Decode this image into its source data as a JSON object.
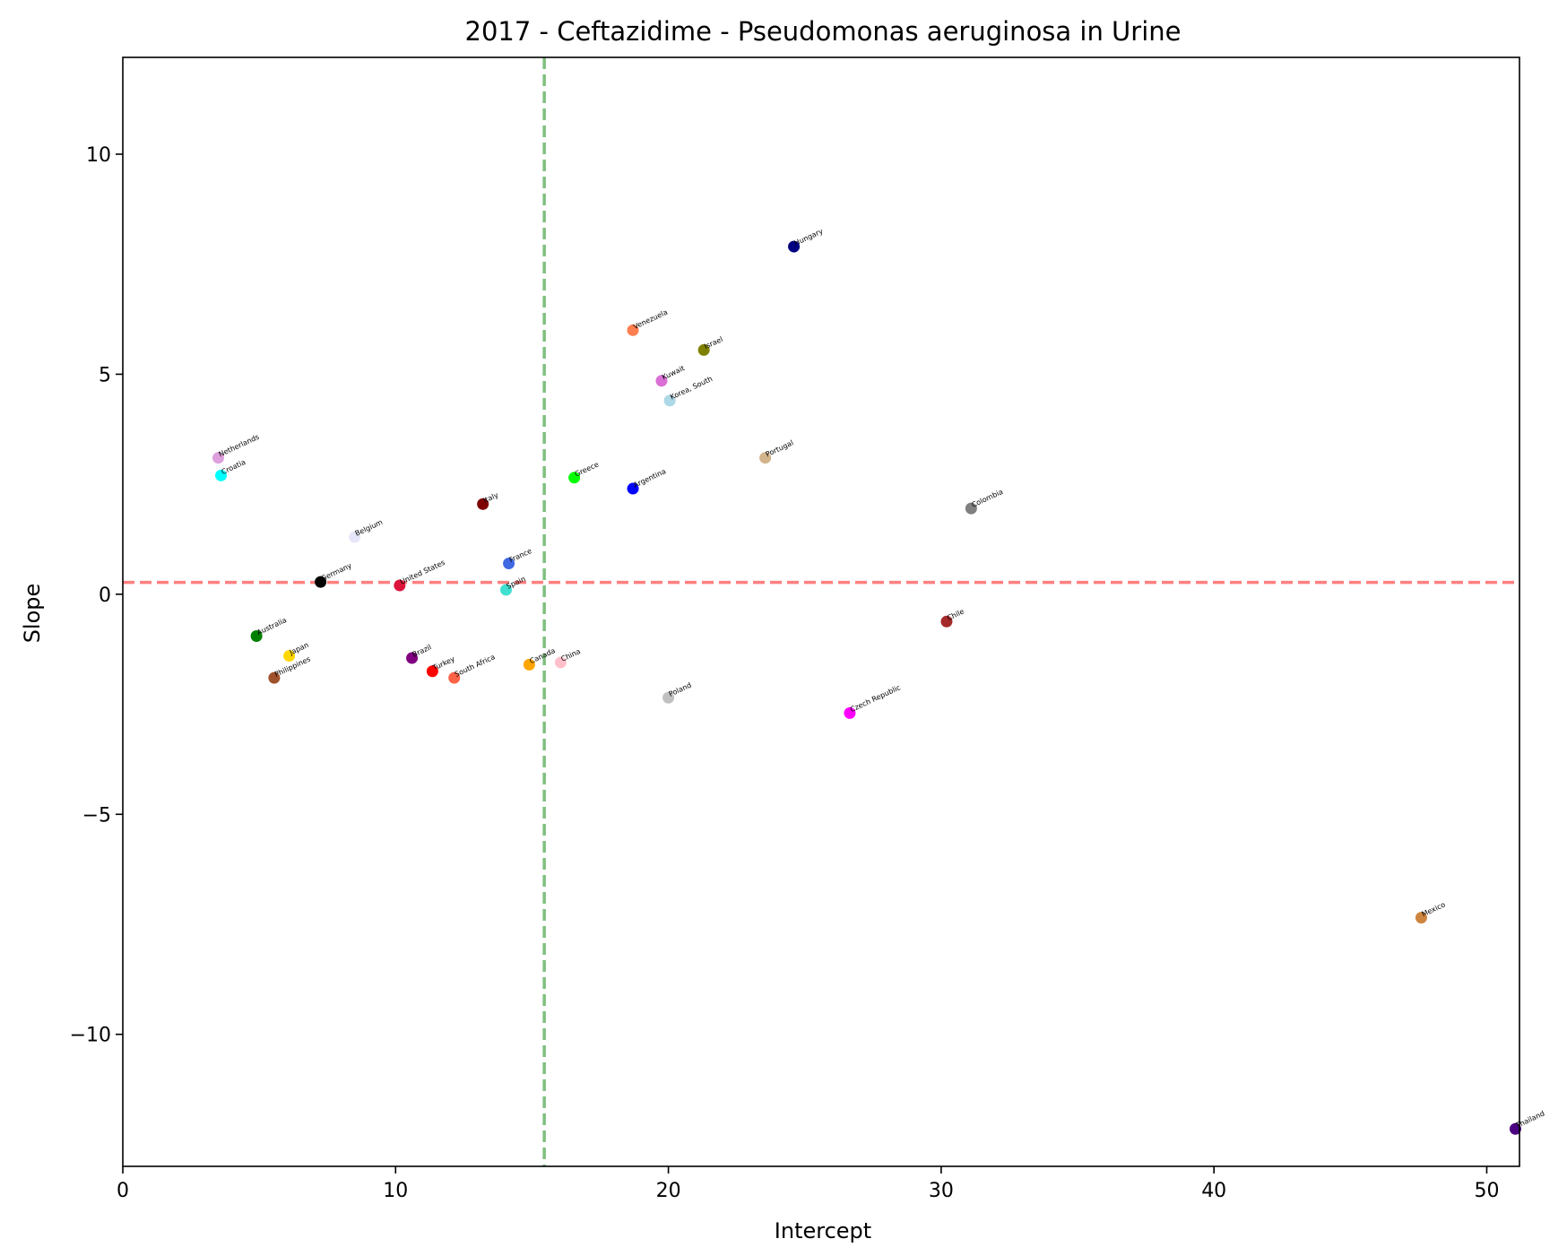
{
  "chart_data": {
    "type": "scatter",
    "title": "2017 - Ceftazidime - Pseudomonas aeruginosa in Urine",
    "xlabel": "Intercept",
    "ylabel": "Slope",
    "xlim": [
      0,
      51.2
    ],
    "ylim": [
      -13.0,
      12.2
    ],
    "xticks": [
      0,
      10,
      20,
      30,
      40,
      50
    ],
    "yticks": [
      -10,
      -5,
      0,
      5,
      10
    ],
    "xtick_labels": [
      "0",
      "10",
      "20",
      "30",
      "40",
      "50"
    ],
    "ytick_labels": [
      "−10",
      "−5",
      "0",
      "5",
      "10"
    ],
    "reference_lines": {
      "vertical": {
        "x": 15.45,
        "color": "#7fbf7f",
        "style": "dashed"
      },
      "horizontal": {
        "y": 0.27,
        "color": "#ff8080",
        "style": "dashed"
      }
    },
    "grid": false,
    "points": [
      {
        "label": "Hungary",
        "x": 24.6,
        "y": 7.9,
        "color": "#000080"
      },
      {
        "label": "Venezuela",
        "x": 18.7,
        "y": 6.0,
        "color": "#ff7f50"
      },
      {
        "label": "Israel",
        "x": 21.3,
        "y": 5.55,
        "color": "#808000"
      },
      {
        "label": "Kuwait",
        "x": 19.75,
        "y": 4.85,
        "color": "#da70d6"
      },
      {
        "label": "Korea, South",
        "x": 20.05,
        "y": 4.4,
        "color": "#add8e6"
      },
      {
        "label": "Netherlands",
        "x": 3.5,
        "y": 3.1,
        "color": "#dda0dd"
      },
      {
        "label": "Portugal",
        "x": 23.55,
        "y": 3.1,
        "color": "#d2b48c"
      },
      {
        "label": "Croatia",
        "x": 3.6,
        "y": 2.7,
        "color": "#00ffff"
      },
      {
        "label": "Greece",
        "x": 16.55,
        "y": 2.65,
        "color": "#00ff00"
      },
      {
        "label": "Argentina",
        "x": 18.7,
        "y": 2.4,
        "color": "#0000ff"
      },
      {
        "label": "Italy",
        "x": 13.2,
        "y": 2.05,
        "color": "#800000"
      },
      {
        "label": "Colombia",
        "x": 31.1,
        "y": 1.95,
        "color": "#808080"
      },
      {
        "label": "Belgium",
        "x": 8.5,
        "y": 1.3,
        "color": "#e6e6fa"
      },
      {
        "label": "France",
        "x": 14.15,
        "y": 0.7,
        "color": "#4169e1"
      },
      {
        "label": "Germany",
        "x": 7.25,
        "y": 0.28,
        "color": "#000000"
      },
      {
        "label": "United States",
        "x": 10.15,
        "y": 0.2,
        "color": "#dc143c"
      },
      {
        "label": "Spain",
        "x": 14.05,
        "y": 0.1,
        "color": "#40e0d0"
      },
      {
        "label": "Chile",
        "x": 30.2,
        "y": -0.62,
        "color": "#a52a2a"
      },
      {
        "label": "Australia",
        "x": 4.9,
        "y": -0.95,
        "color": "#008000"
      },
      {
        "label": "Japan",
        "x": 6.1,
        "y": -1.4,
        "color": "#ffd700"
      },
      {
        "label": "Brazil",
        "x": 10.6,
        "y": -1.45,
        "color": "#800080"
      },
      {
        "label": "China",
        "x": 16.05,
        "y": -1.55,
        "color": "#ffc0cb"
      },
      {
        "label": "Canada",
        "x": 14.9,
        "y": -1.6,
        "color": "#ffa500"
      },
      {
        "label": "Turkey",
        "x": 11.35,
        "y": -1.75,
        "color": "#ff0000"
      },
      {
        "label": "South Africa",
        "x": 12.15,
        "y": -1.9,
        "color": "#ff6347"
      },
      {
        "label": "Philippines",
        "x": 5.55,
        "y": -1.9,
        "color": "#a0522d"
      },
      {
        "label": "Poland",
        "x": 20.0,
        "y": -2.35,
        "color": "#c0c0c0"
      },
      {
        "label": "Czech Republic",
        "x": 26.65,
        "y": -2.7,
        "color": "#ff00ff"
      },
      {
        "label": "Mexico",
        "x": 47.6,
        "y": -7.35,
        "color": "#cd853f"
      },
      {
        "label": "Thailand",
        "x": 51.05,
        "y": -12.15,
        "color": "#4b0082"
      }
    ]
  }
}
